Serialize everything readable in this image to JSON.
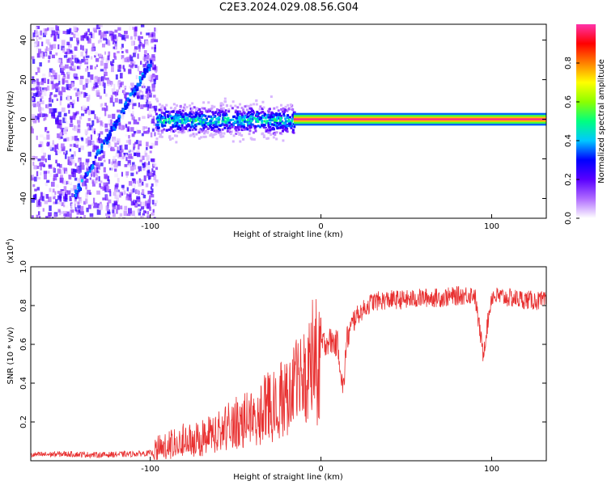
{
  "title": "C2E3.2024.029.08.56.G04",
  "chart_data": [
    {
      "type": "heatmap",
      "xlabel": "Height of straight line (km)",
      "ylabel": "Frequency (Hz)",
      "xlim": [
        -170,
        132
      ],
      "ylim": [
        -50,
        48
      ],
      "xticks": [
        -100,
        0,
        100
      ],
      "xtick_labels": [
        "-100",
        "0",
        "100"
      ],
      "yticks": [
        -40,
        -20,
        0,
        20,
        40
      ],
      "ytick_labels": [
        "-40",
        "-20",
        "0",
        "20",
        "40"
      ],
      "colorbar": {
        "label": "Normalized spectral amplitude",
        "range": [
          0,
          1
        ],
        "ticks": [
          0.0,
          0.2,
          0.4,
          0.6,
          0.8
        ],
        "tick_labels": [
          "0.0",
          "0.2",
          "0.4",
          "0.6",
          "0.8"
        ],
        "colors": [
          "#ffffff",
          "#b06cff",
          "#5a00ff",
          "#0000ff",
          "#00c8ff",
          "#00ff80",
          "#8cff00",
          "#ffff00",
          "#ff8000",
          "#ff0000",
          "#ff33aa"
        ]
      },
      "features": [
        {
          "name": "broadband noise",
          "x_range": [
            -170,
            -97
          ],
          "freq_range": [
            -50,
            48
          ],
          "amplitude": 0.1
        },
        {
          "name": "diagonal feature",
          "x": [
            -145,
            -100
          ],
          "freq": [
            -38,
            30
          ],
          "amplitude": 0.25
        },
        {
          "name": "tone band (fading)",
          "x_range": [
            -97,
            -16
          ],
          "freq": 0,
          "amplitude": 0.45
        },
        {
          "name": "tone line (strong)",
          "x_range": [
            -16,
            132
          ],
          "freq": 0,
          "amplitude": 0.98
        }
      ],
      "grid": false
    },
    {
      "type": "line",
      "xlabel": "Height of straight line (km)",
      "ylabel": "SNR (10 * v/v)",
      "yscale_label": "(x10",
      "yscale_exponent": "4",
      "xlim": [
        -170,
        132
      ],
      "ylim": [
        0,
        1.0
      ],
      "xticks": [
        -100,
        0,
        100
      ],
      "xtick_labels": [
        "-100",
        "0",
        "100"
      ],
      "yticks": [
        0.2,
        0.4,
        0.6,
        0.8,
        1.0
      ],
      "ytick_labels": [
        "0.2",
        "0.4",
        "0.6",
        "0.8",
        "1.0"
      ],
      "color": "#e83030",
      "series": [
        {
          "x": [
            -170,
            -150,
            -130,
            -110,
            -98,
            -90,
            -80,
            -70,
            -60,
            -50,
            -40,
            -30,
            -20,
            -16,
            -12,
            -8,
            -4,
            0,
            5,
            10,
            13,
            15,
            20,
            25,
            30,
            40,
            50,
            60,
            70,
            80,
            90,
            95,
            100,
            110,
            120,
            132
          ],
          "values": [
            0.03,
            0.035,
            0.03,
            0.035,
            0.04,
            0.08,
            0.1,
            0.12,
            0.15,
            0.2,
            0.25,
            0.3,
            0.35,
            0.4,
            0.48,
            0.55,
            0.58,
            0.6,
            0.62,
            0.6,
            0.35,
            0.62,
            0.74,
            0.78,
            0.82,
            0.83,
            0.83,
            0.84,
            0.84,
            0.85,
            0.86,
            0.55,
            0.85,
            0.84,
            0.83,
            0.82
          ]
        }
      ],
      "grid": false
    }
  ]
}
